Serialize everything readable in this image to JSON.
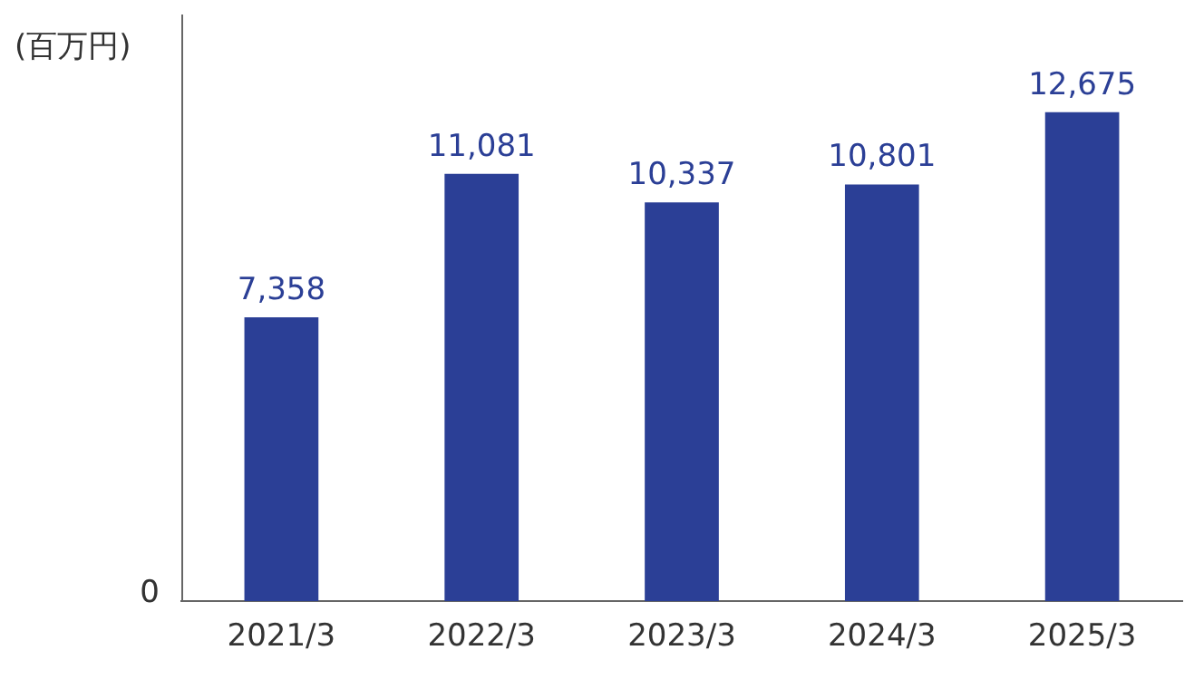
{
  "chart_data": {
    "type": "bar",
    "ylabel": "(百万円)",
    "categories": [
      "2021/3",
      "2022/3",
      "2023/3",
      "2024/3",
      "2025/3"
    ],
    "values": [
      7358,
      11081,
      10337,
      10801,
      12675
    ],
    "value_labels": [
      "7,358",
      "11,081",
      "10,337",
      "10,801",
      "12,675"
    ],
    "color": "#2b3f96",
    "annotations": [
      "0"
    ],
    "grid": false,
    "legend": false
  }
}
